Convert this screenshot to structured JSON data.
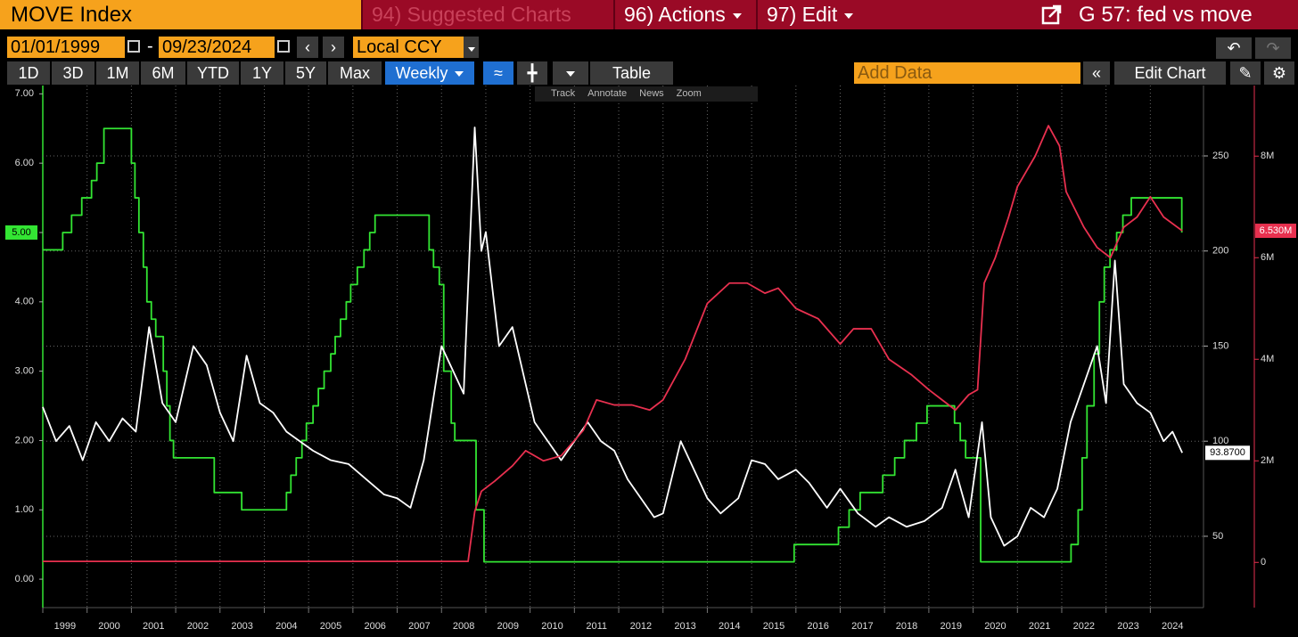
{
  "header": {
    "title": "MOVE Index",
    "menu": [
      "94) Suggested Charts",
      "96) Actions",
      "97) Edit"
    ],
    "chart_name": "G 57: fed vs move"
  },
  "controls": {
    "start_date": "01/01/1999",
    "separator": "-",
    "end_date": "09/23/2024",
    "currency": "Local CCY",
    "periods": [
      "1D",
      "3D",
      "1M",
      "6M",
      "YTD",
      "1Y",
      "5Y",
      "Max"
    ],
    "frequency": "Weekly",
    "table": "Table",
    "add_data": "Add Data",
    "edit_chart": "Edit Chart",
    "chart_tools": [
      "Track",
      "Annotate",
      "News",
      "Zoom"
    ]
  },
  "chart_data": {
    "type": "line",
    "xlim": [
      1999,
      2025.2
    ],
    "xticks": [
      1999,
      2000,
      2001,
      2002,
      2003,
      2004,
      2005,
      2006,
      2007,
      2008,
      2009,
      2010,
      2011,
      2012,
      2013,
      2014,
      2015,
      2016,
      2017,
      2018,
      2019,
      2020,
      2021,
      2022,
      2023,
      2024
    ],
    "ylim": [
      -0.41,
      7.12
    ],
    "yticks": [
      {
        "value": 0,
        "label": "0.00"
      },
      {
        "value": 1,
        "label": "1.00"
      },
      {
        "value": 2,
        "label": "2.00"
      },
      {
        "value": 3,
        "label": "3.00"
      },
      {
        "value": 4,
        "label": "4.00"
      },
      {
        "value": 5,
        "label": "5.00"
      },
      {
        "value": 6,
        "label": "6.00"
      },
      {
        "value": 7,
        "label": "7.00"
      }
    ],
    "y2lim": [
      12.5,
      287
    ],
    "y2ticks": [
      50,
      100,
      150,
      200,
      250
    ],
    "y3lim": [
      -890000,
      9390000
    ],
    "y3ticks": [
      {
        "value": 0,
        "label": "0"
      },
      {
        "value": 2000000,
        "label": "2M"
      },
      {
        "value": 4000000,
        "label": "4M"
      },
      {
        "value": 6000000,
        "label": "6M"
      },
      {
        "value": 8000000,
        "label": "8M"
      }
    ],
    "grid": true,
    "series": [
      {
        "color": "#33e533",
        "axis": "y",
        "step": "post",
        "last_label": "5.00",
        "x": [
          1999.0,
          1999.45,
          1999.65,
          1999.88,
          2000.1,
          2000.22,
          2000.38,
          2001.0,
          2001.08,
          2001.17,
          2001.27,
          2001.35,
          2001.45,
          2001.55,
          2001.72,
          2001.8,
          2001.87,
          2001.95,
          2002.87,
          2003.49,
          2004.5,
          2004.6,
          2004.72,
          2004.85,
          2004.95,
          2005.1,
          2005.22,
          2005.35,
          2005.5,
          2005.6,
          2005.72,
          2005.85,
          2005.95,
          2006.1,
          2006.25,
          2006.38,
          2006.5,
          2007.72,
          2007.82,
          2007.95,
          2008.05,
          2008.22,
          2008.3,
          2008.78,
          2008.96,
          2015.96,
          2016.96,
          2017.2,
          2017.45,
          2017.96,
          2018.23,
          2018.45,
          2018.72,
          2018.96,
          2019.58,
          2019.71,
          2019.83,
          2020.17,
          2022.21,
          2022.37,
          2022.46,
          2022.57,
          2022.73,
          2022.85,
          2022.96,
          2023.09,
          2023.24,
          2023.38,
          2023.57,
          2024.71
        ],
        "values": [
          4.75,
          5.0,
          5.25,
          5.5,
          5.75,
          6.0,
          6.5,
          6.0,
          5.5,
          5.0,
          4.5,
          4.0,
          3.75,
          3.5,
          3.0,
          2.5,
          2.0,
          1.75,
          1.25,
          1.0,
          1.25,
          1.5,
          1.75,
          2.0,
          2.25,
          2.5,
          2.75,
          3.0,
          3.25,
          3.5,
          3.75,
          4.0,
          4.25,
          4.5,
          4.75,
          5.0,
          5.25,
          4.75,
          4.5,
          4.25,
          3.0,
          2.25,
          2.0,
          1.0,
          0.25,
          0.5,
          0.75,
          1.0,
          1.25,
          1.5,
          1.75,
          2.0,
          2.25,
          2.5,
          2.25,
          2.0,
          1.75,
          0.25,
          0.5,
          1.0,
          1.75,
          2.5,
          3.25,
          4.0,
          4.5,
          4.75,
          5.0,
          5.25,
          5.5,
          5.0
        ]
      },
      {
        "color": "#ffffff",
        "axis": "y2",
        "last_label": "93.8700",
        "x": [
          1999.0,
          1999.3,
          1999.6,
          1999.9,
          2000.2,
          2000.5,
          2000.8,
          2001.1,
          2001.4,
          2001.7,
          2002.0,
          2002.4,
          2002.7,
          2003.0,
          2003.3,
          2003.6,
          2003.9,
          2004.2,
          2004.5,
          2004.8,
          2005.1,
          2005.5,
          2005.9,
          2006.3,
          2006.7,
          2007.0,
          2007.3,
          2007.6,
          2007.8,
          2008.0,
          2008.2,
          2008.5,
          2008.75,
          2008.9,
          2009.0,
          2009.3,
          2009.6,
          2009.9,
          2010.1,
          2010.4,
          2010.7,
          2011.0,
          2011.3,
          2011.6,
          2011.9,
          2012.2,
          2012.5,
          2012.8,
          2013.0,
          2013.4,
          2013.7,
          2014.0,
          2014.3,
          2014.7,
          2015.0,
          2015.3,
          2015.6,
          2016.0,
          2016.3,
          2016.7,
          2017.0,
          2017.4,
          2017.8,
          2018.1,
          2018.5,
          2018.9,
          2019.3,
          2019.6,
          2019.9,
          2020.2,
          2020.4,
          2020.7,
          2021.0,
          2021.3,
          2021.6,
          2021.9,
          2022.2,
          2022.5,
          2022.8,
          2023.0,
          2023.2,
          2023.4,
          2023.7,
          2024.0,
          2024.3,
          2024.5,
          2024.72
        ],
        "values": [
          118,
          100,
          108,
          90,
          110,
          100,
          112,
          105,
          160,
          120,
          110,
          150,
          140,
          115,
          100,
          145,
          120,
          115,
          105,
          100,
          95,
          90,
          88,
          80,
          72,
          70,
          65,
          90,
          120,
          150,
          140,
          125,
          265,
          200,
          210,
          150,
          160,
          130,
          110,
          100,
          90,
          100,
          110,
          100,
          95,
          80,
          70,
          60,
          62,
          100,
          85,
          70,
          62,
          70,
          90,
          88,
          80,
          85,
          78,
          65,
          75,
          62,
          55,
          60,
          55,
          58,
          65,
          85,
          60,
          110,
          60,
          45,
          50,
          65,
          60,
          75,
          110,
          130,
          150,
          120,
          195,
          130,
          120,
          115,
          100,
          105,
          93.87
        ]
      },
      {
        "color": "#e8304f",
        "axis": "y3",
        "last_label": "6.530M",
        "x": [
          1999.0,
          2008.6,
          2008.75,
          2008.9,
          2009.2,
          2009.6,
          2009.9,
          2010.3,
          2010.7,
          2011.2,
          2011.5,
          2011.9,
          2012.3,
          2012.7,
          2013.0,
          2013.5,
          2014.0,
          2014.5,
          2014.9,
          2015.3,
          2015.6,
          2016.0,
          2016.5,
          2017.0,
          2017.3,
          2017.7,
          2018.1,
          2018.6,
          2019.0,
          2019.3,
          2019.6,
          2019.9,
          2020.1,
          2020.25,
          2020.5,
          2020.8,
          2021.0,
          2021.4,
          2021.7,
          2021.95,
          2022.1,
          2022.5,
          2022.8,
          2023.1,
          2023.4,
          2023.7,
          2024.0,
          2024.3,
          2024.72
        ],
        "values": [
          20000,
          20000,
          1000000,
          1400000,
          1600000,
          1900000,
          2200000,
          2000000,
          2100000,
          2600000,
          3200000,
          3100000,
          3100000,
          3000000,
          3200000,
          4000000,
          5100000,
          5500000,
          5500000,
          5300000,
          5400000,
          5000000,
          4800000,
          4300000,
          4600000,
          4600000,
          4000000,
          3700000,
          3400000,
          3200000,
          3000000,
          3300000,
          3400000,
          5500000,
          6000000,
          6800000,
          7400000,
          8000000,
          8600000,
          8200000,
          7300000,
          6600000,
          6200000,
          6000000,
          6600000,
          6800000,
          7200000,
          6800000,
          6530000
        ]
      }
    ]
  }
}
